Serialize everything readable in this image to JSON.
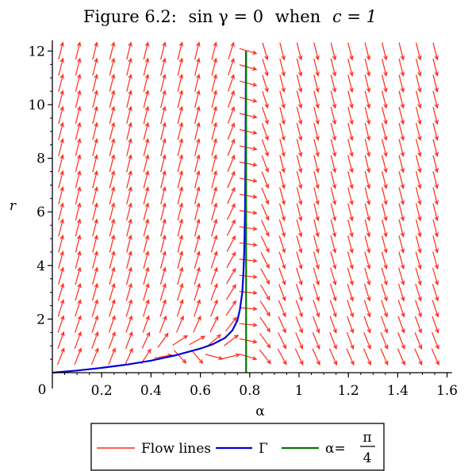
{
  "chart_data": {
    "type": "vector_field",
    "title": {
      "prefix": "Figure 6.2:",
      "equation_lhs": "sin γ = 0",
      "word": "when",
      "equation_rhs": "c = 1"
    },
    "xlabel": "α",
    "ylabel": "r",
    "xlim": [
      0,
      1.62
    ],
    "ylim": [
      0,
      12.4
    ],
    "x_ticks": [
      0.2,
      0.4,
      0.6,
      0.8,
      1,
      1.2,
      1.4,
      1.6
    ],
    "x_tick_labels": [
      "0.2",
      "0.4",
      "0.6",
      "0.8",
      "1",
      "1.2",
      "1.4",
      "1.6"
    ],
    "y_ticks": [
      2,
      4,
      6,
      8,
      10,
      12
    ],
    "y_tick_labels": [
      "2",
      "4",
      "6",
      "8",
      "10",
      "12"
    ],
    "origin_label": "0",
    "grid": false,
    "colors": {
      "flow": "#ff2a1a",
      "gamma": "#0000d8",
      "alpha_line": "#007a00"
    },
    "vector_field": {
      "x_start": 0.034,
      "x_step": 0.069,
      "x_count": 23,
      "y_start": 0.6,
      "y_step": 0.6,
      "y_count": 20
    },
    "series": [
      {
        "name": "Γ",
        "color": "#0000d8",
        "points": [
          [
            0,
            0
          ],
          [
            0.1,
            0.08
          ],
          [
            0.2,
            0.18
          ],
          [
            0.3,
            0.3
          ],
          [
            0.4,
            0.45
          ],
          [
            0.5,
            0.65
          ],
          [
            0.6,
            0.9
          ],
          [
            0.65,
            1.06
          ],
          [
            0.7,
            1.3
          ],
          [
            0.73,
            1.58
          ],
          [
            0.75,
            1.95
          ],
          [
            0.76,
            2.35
          ],
          [
            0.77,
            3.0
          ],
          [
            0.775,
            3.8
          ],
          [
            0.778,
            4.6
          ],
          [
            0.781,
            6.0
          ],
          [
            0.783,
            8.0
          ],
          [
            0.784,
            10.0
          ],
          [
            0.785,
            12.0
          ]
        ]
      },
      {
        "name": "α=π/4",
        "color": "#007a00",
        "x": 0.7854,
        "y_range": [
          0,
          12
        ]
      }
    ],
    "legend": {
      "placement": "bottom",
      "entries": [
        {
          "label": "Flow lines",
          "color": "#ff2a1a"
        },
        {
          "label": "Γ",
          "color": "#0000d8"
        },
        {
          "label_prefix": "α=",
          "numerator": "π",
          "denominator": "4",
          "color": "#007a00"
        }
      ]
    }
  }
}
